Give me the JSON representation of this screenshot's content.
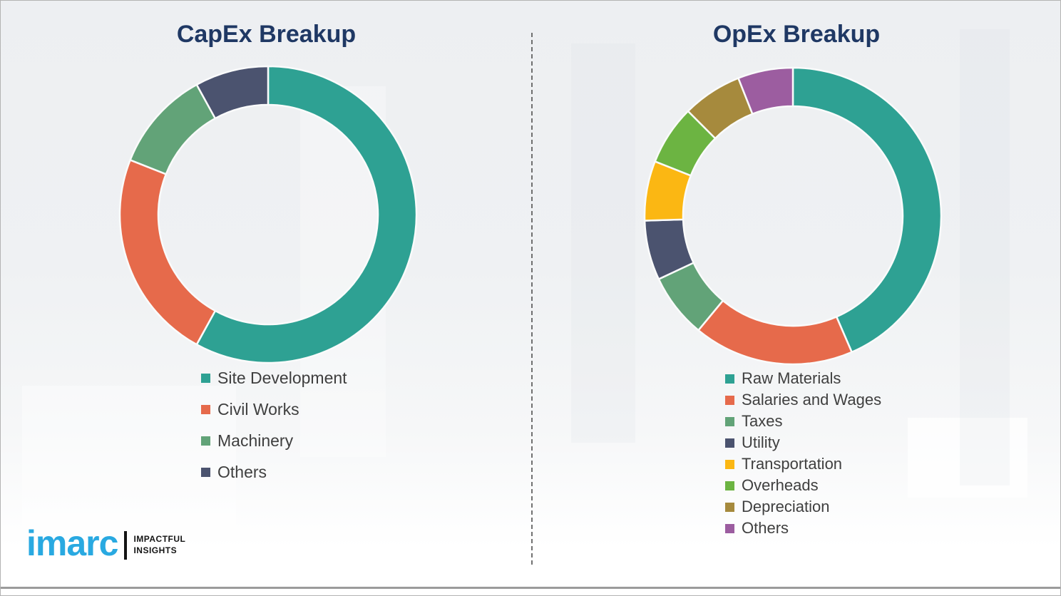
{
  "page": {
    "background_top_color": "#edeff2",
    "border_color": "#b3b3b3",
    "divider_color": "#595959",
    "title_color": "#1f3864",
    "legend_text_color": "#3f3f3f",
    "bottom_rule_color": "#9b9b9b"
  },
  "logo": {
    "brand": "imarc",
    "brand_color": "#29a9e1",
    "tagline_line1": "IMPACTFUL",
    "tagline_line2": "INSIGHTS",
    "tagline_color": "#141414"
  },
  "chart_data": [
    {
      "type": "pie",
      "subtype": "donut",
      "title": "CapEx Breakup",
      "categories": [
        "Site Development",
        "Civil Works",
        "Machinery",
        "Others"
      ],
      "values": [
        58,
        23,
        11,
        8
      ],
      "values_unit": "percent (estimated from arc angles; no numeric labels shown)",
      "colors": [
        "#2ea193",
        "#e66a4b",
        "#62a378",
        "#4b536f"
      ],
      "start_angle_deg": 0,
      "direction": "clockwise",
      "legend_position": "below-left",
      "data_labels": false
    },
    {
      "type": "pie",
      "subtype": "donut",
      "title": "OpEx Breakup",
      "categories": [
        "Raw Materials",
        "Salaries and Wages",
        "Taxes",
        "Utility",
        "Transportation",
        "Overheads",
        "Depreciation",
        "Others"
      ],
      "values": [
        43.5,
        17.5,
        7,
        6.5,
        6.5,
        6.5,
        6.5,
        6
      ],
      "values_unit": "percent (estimated from arc angles; no numeric labels shown)",
      "colors": [
        "#2ea193",
        "#e66a4b",
        "#62a378",
        "#4b536f",
        "#fbb713",
        "#6cb442",
        "#a68a3d",
        "#9c5da0"
      ],
      "start_angle_deg": 0,
      "direction": "clockwise",
      "legend_position": "below-left",
      "data_labels": false
    }
  ]
}
